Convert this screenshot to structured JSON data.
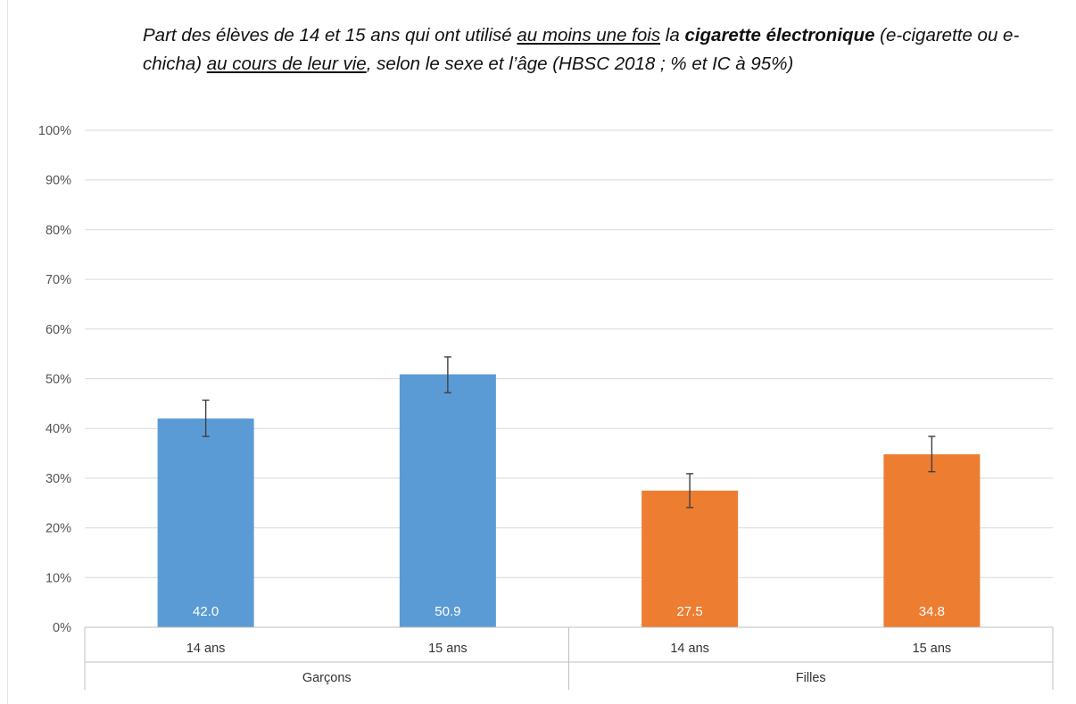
{
  "chart_data": {
    "type": "bar",
    "title": {
      "p1": "Part des élèves de 14 et 15 ans qui ont utilisé ",
      "u1": "au moins une fois",
      "p2": " la ",
      "b1": "cigarette électronique",
      "p3": " (e-cigarette ou e-chicha) ",
      "u2": "au cours de leur vie",
      "p4": ", selon le sexe et l’âge (HBSC 2018 ; % et IC à 95%)"
    },
    "ylim": [
      0,
      100
    ],
    "yticks": [
      "0%",
      "10%",
      "20%",
      "30%",
      "40%",
      "50%",
      "60%",
      "70%",
      "80%",
      "90%",
      "100%"
    ],
    "groups": [
      "Garçons",
      "Filles"
    ],
    "categories": [
      "14 ans",
      "15 ans",
      "14 ans",
      "15 ans"
    ],
    "values": [
      42.0,
      50.9,
      27.5,
      34.8
    ],
    "data_labels": [
      "42.0",
      "50.9",
      "27.5",
      "34.8"
    ],
    "ci_low": [
      38.4,
      47.2,
      24.1,
      31.3
    ],
    "ci_high": [
      45.7,
      54.4,
      30.9,
      38.4
    ],
    "colors": [
      "#5b9bd5",
      "#5b9bd5",
      "#ed7d31",
      "#ed7d31"
    ],
    "grid": true
  }
}
